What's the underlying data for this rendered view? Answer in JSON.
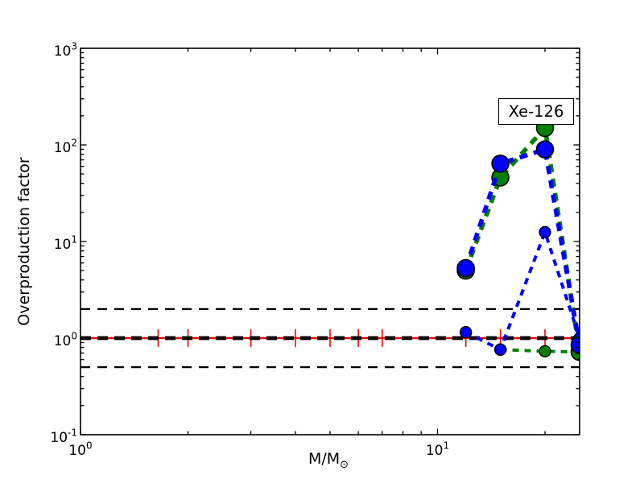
{
  "figure": {
    "ylabel": "Overproduction factor",
    "xlabel_main": "M/M",
    "xlabel_sub": "⊙",
    "annotation_text": "Xe-126",
    "background": "#ffffff"
  },
  "chart_data": {
    "type": "line",
    "title": "",
    "xlabel": "M/M⊙",
    "ylabel": "Overproduction factor",
    "xscale": "log",
    "yscale": "log",
    "xlim": [
      1,
      25
    ],
    "ylim": [
      0.1,
      1000
    ],
    "grid": false,
    "legend": "none",
    "annotation": {
      "text": "Xe-126",
      "x": 18,
      "y": 220
    },
    "x": [
      12,
      15,
      20,
      25
    ],
    "series": [
      {
        "name": "green-secondary",
        "color": "#008000",
        "line": "thin-dashed",
        "marker": "circle-small",
        "values": [
          null,
          0.76,
          0.73,
          0.72
        ]
      },
      {
        "name": "blue-secondary",
        "color": "#0000ff",
        "line": "thin-dashed",
        "marker": "circle-small",
        "values": [
          1.15,
          0.76,
          12.5,
          1.0
        ]
      },
      {
        "name": "green-primary",
        "color": "#008000",
        "line": "thick-dashed",
        "marker": "circle-large",
        "values": [
          5.0,
          46,
          150,
          0.72
        ]
      },
      {
        "name": "blue-primary",
        "color": "#0000ff",
        "line": "thick-dashed",
        "marker": "circle-large",
        "values": [
          5.3,
          64,
          90,
          0.85
        ]
      }
    ],
    "reference_lines": [
      {
        "label": "band-upper",
        "y": 2,
        "color": "#000000",
        "style": "dashed",
        "weight": "thin"
      },
      {
        "label": "band-lower",
        "y": 0.5,
        "color": "#000000",
        "style": "dashed",
        "weight": "thin"
      },
      {
        "label": "unity-red",
        "y": 1,
        "color": "#ff0000",
        "style": "solid",
        "weight": "thin"
      },
      {
        "label": "unity-black",
        "y": 1,
        "color": "#000000",
        "style": "dashed",
        "weight": "thick"
      }
    ],
    "error_bars": {
      "color": "#ff0000",
      "y": 1.0,
      "x": [
        1.65,
        2,
        3,
        4,
        5,
        6,
        7,
        12,
        15,
        20,
        25
      ]
    },
    "x_ticks": {
      "major": [
        1,
        10
      ],
      "minor": [
        2,
        3,
        4,
        5,
        6,
        7,
        8,
        9,
        20
      ],
      "labels": [
        {
          "base": "10",
          "exp": "0"
        },
        {
          "base": "10",
          "exp": "1"
        }
      ]
    },
    "y_ticks": {
      "major": [
        1000,
        100,
        10,
        1,
        0.1
      ],
      "labels": [
        {
          "base": "10",
          "exp": "3"
        },
        {
          "base": "10",
          "exp": "2"
        },
        {
          "base": "10",
          "exp": "1"
        },
        {
          "base": "10",
          "exp": "0"
        },
        {
          "base": "10",
          "exp": "-1"
        }
      ],
      "minor_multipliers": [
        2,
        3,
        4,
        5,
        6,
        7,
        8,
        9
      ]
    }
  }
}
